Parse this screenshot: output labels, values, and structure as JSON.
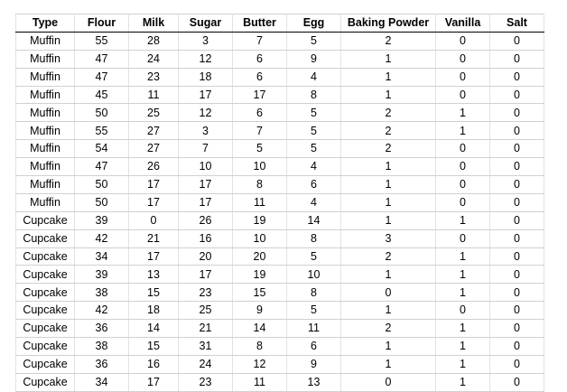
{
  "table": {
    "columns": [
      "Type",
      "Flour",
      "Milk",
      "Sugar",
      "Butter",
      "Egg",
      "Baking Powder",
      "Vanilla",
      "Salt"
    ],
    "rows": [
      [
        "Muffin",
        "55",
        "28",
        "3",
        "7",
        "5",
        "2",
        "0",
        "0"
      ],
      [
        "Muffin",
        "47",
        "24",
        "12",
        "6",
        "9",
        "1",
        "0",
        "0"
      ],
      [
        "Muffin",
        "47",
        "23",
        "18",
        "6",
        "4",
        "1",
        "0",
        "0"
      ],
      [
        "Muffin",
        "45",
        "11",
        "17",
        "17",
        "8",
        "1",
        "0",
        "0"
      ],
      [
        "Muffin",
        "50",
        "25",
        "12",
        "6",
        "5",
        "2",
        "1",
        "0"
      ],
      [
        "Muffin",
        "55",
        "27",
        "3",
        "7",
        "5",
        "2",
        "1",
        "0"
      ],
      [
        "Muffin",
        "54",
        "27",
        "7",
        "5",
        "5",
        "2",
        "0",
        "0"
      ],
      [
        "Muffin",
        "47",
        "26",
        "10",
        "10",
        "4",
        "1",
        "0",
        "0"
      ],
      [
        "Muffin",
        "50",
        "17",
        "17",
        "8",
        "6",
        "1",
        "0",
        "0"
      ],
      [
        "Muffin",
        "50",
        "17",
        "17",
        "11",
        "4",
        "1",
        "0",
        "0"
      ],
      [
        "Cupcake",
        "39",
        "0",
        "26",
        "19",
        "14",
        "1",
        "1",
        "0"
      ],
      [
        "Cupcake",
        "42",
        "21",
        "16",
        "10",
        "8",
        "3",
        "0",
        "0"
      ],
      [
        "Cupcake",
        "34",
        "17",
        "20",
        "20",
        "5",
        "2",
        "1",
        "0"
      ],
      [
        "Cupcake",
        "39",
        "13",
        "17",
        "19",
        "10",
        "1",
        "1",
        "0"
      ],
      [
        "Cupcake",
        "38",
        "15",
        "23",
        "15",
        "8",
        "0",
        "1",
        "0"
      ],
      [
        "Cupcake",
        "42",
        "18",
        "25",
        "9",
        "5",
        "1",
        "0",
        "0"
      ],
      [
        "Cupcake",
        "36",
        "14",
        "21",
        "14",
        "11",
        "2",
        "1",
        "0"
      ],
      [
        "Cupcake",
        "38",
        "15",
        "31",
        "8",
        "6",
        "1",
        "1",
        "0"
      ],
      [
        "Cupcake",
        "36",
        "16",
        "24",
        "12",
        "9",
        "1",
        "1",
        "0"
      ],
      [
        "Cupcake",
        "34",
        "17",
        "23",
        "11",
        "13",
        "0",
        "1",
        "0"
      ]
    ]
  }
}
